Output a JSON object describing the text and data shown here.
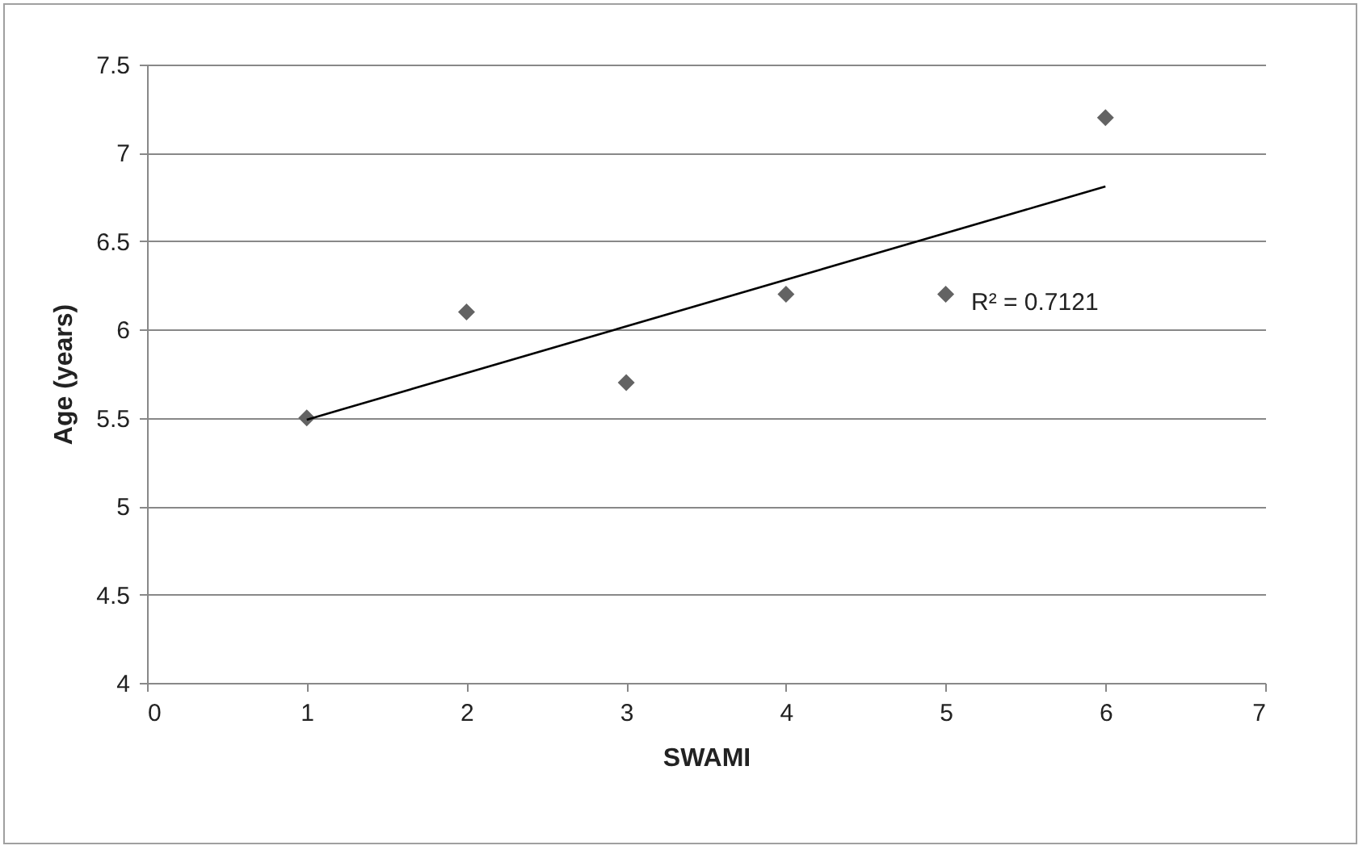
{
  "chart_data": {
    "type": "scatter",
    "xlabel": "SWAMI",
    "ylabel": "Age (years)",
    "x": [
      1,
      2,
      3,
      4,
      5,
      6
    ],
    "series": [
      {
        "color": "#636363",
        "marker": "diamond",
        "values": [
          5.5,
          6.1,
          5.7,
          6.2,
          6.2,
          7.2
        ]
      },
      {
        "type": "line",
        "color": "#000000",
        "marker": "none",
        "x": [
          1,
          6
        ],
        "values": [
          5.49,
          6.81
        ]
      }
    ],
    "xlim": [
      0,
      7
    ],
    "xticks": [
      0,
      1,
      2,
      3,
      4,
      5,
      6,
      7
    ],
    "ylim": [
      4,
      7.5
    ],
    "yticks": [
      4,
      4.5,
      5,
      5.5,
      6,
      6.5,
      7,
      7.5
    ],
    "grid": "y",
    "annotations": [
      "R² = 0.7121"
    ]
  }
}
